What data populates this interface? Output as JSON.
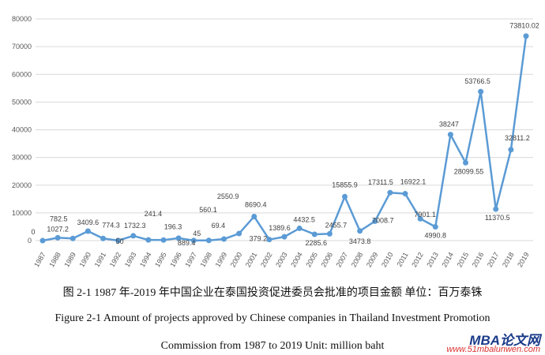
{
  "chart_data": {
    "type": "line",
    "title": "",
    "xlabel": "",
    "ylabel": "",
    "ylim": [
      0,
      80000
    ],
    "yticks": [
      "0",
      "10000",
      "20000",
      "30000",
      "40000",
      "50000",
      "60000",
      "70000",
      "80000"
    ],
    "grid": true,
    "legend": "none",
    "color": "#5b9bd5",
    "categories": [
      "1987",
      "1988",
      "1989",
      "1990",
      "1991",
      "1992",
      "1993",
      "1994",
      "1995",
      "1996",
      "1997",
      "1998",
      "1999",
      "2000",
      "2001",
      "2002",
      "2003",
      "2004",
      "2005",
      "2006",
      "2007",
      "2008",
      "2009",
      "2010",
      "2011",
      "2012",
      "2013",
      "2014",
      "2015",
      "2016",
      "2017",
      "2018",
      "2019"
    ],
    "values": [
      0,
      1027.2,
      782.5,
      3409.6,
      774.3,
      50,
      1732.3,
      241.4,
      196.3,
      889.4,
      45,
      69.4,
      560.1,
      2550.9,
      8690.4,
      379.2,
      1389.6,
      4432.5,
      2285.6,
      2455.7,
      15855.9,
      3473.8,
      7008.7,
      17311.5,
      16922.1,
      7901.1,
      4990.8,
      38247,
      28099.55,
      53766.5,
      11370.5,
      32811.2,
      73810.02
    ],
    "labels": [
      "0",
      "1027.2",
      "782.5",
      "3409.6",
      "774.3",
      "50",
      "1732.3",
      "241.4",
      "196.3",
      "889.4",
      "45",
      "69.4",
      "560.1",
      "2550.9",
      "8690.4",
      "379.2",
      "1389.6",
      "4432.5",
      "2285.6",
      "2455.7",
      "15855.9",
      "3473.8",
      "7008.7",
      "17311.5",
      "16922.1",
      "7901.1",
      "4990.8",
      "38247",
      "28099.55",
      "53766.5",
      "11370.5",
      "32811.2",
      "73810.02"
    ]
  },
  "caption": {
    "cn": "图 2-1 1987 年-2019 年中国企业在泰国投资促进委员会批准的项目金额  单位：百万泰铢",
    "en1": "Figure 2-1    Amount of projects approved by Chinese companies in Thailand Investment Promotion",
    "en2": "Commission from 1987 to 2019    Unit: million baht"
  },
  "watermark": {
    "logo": "MBA论文网",
    "url": "www.51mbalunwen.com"
  }
}
